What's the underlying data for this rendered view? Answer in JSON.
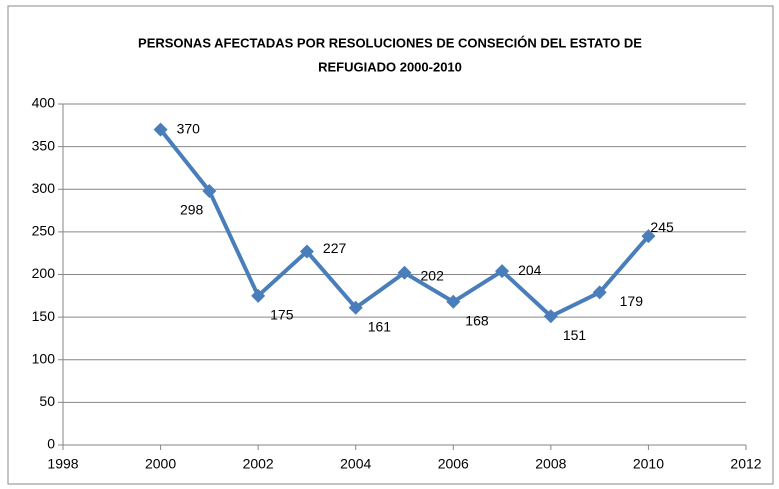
{
  "chart_data": {
    "type": "line",
    "title": [
      "PERSONAS AFECTADAS POR RESOLUCIONES DE CONSECIÓN DEL ESTATO DE",
      "REFUGIADO 2000-2010"
    ],
    "x": [
      2000,
      2001,
      2002,
      2003,
      2004,
      2005,
      2006,
      2007,
      2008,
      2009,
      2010
    ],
    "series": [
      {
        "name": "Personas",
        "color": "#4a7ebb",
        "values": [
          370,
          298,
          175,
          227,
          161,
          202,
          168,
          204,
          151,
          179,
          245
        ]
      }
    ],
    "xlim": [
      1998,
      2012
    ],
    "xticks": [
      1998,
      2000,
      2002,
      2004,
      2006,
      2008,
      2010,
      2012
    ],
    "ylim": [
      0,
      400
    ],
    "yticks": [
      0,
      50,
      100,
      150,
      200,
      250,
      300,
      350,
      400
    ],
    "grid": true
  }
}
